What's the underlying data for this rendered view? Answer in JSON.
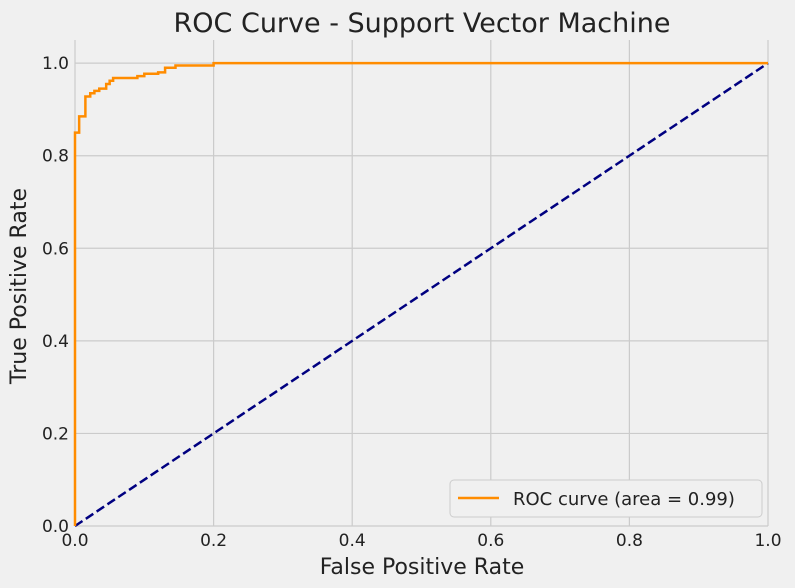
{
  "chart_data": {
    "type": "line",
    "title": "ROC Curve - Support Vector Machine",
    "xlabel": "False Positive Rate",
    "ylabel": "True Positive Rate",
    "xlim": [
      0.0,
      1.0
    ],
    "ylim": [
      0.0,
      1.05
    ],
    "x_ticks": [
      "0.0",
      "0.2",
      "0.4",
      "0.6",
      "0.8",
      "1.0"
    ],
    "y_ticks": [
      "0.0",
      "0.2",
      "0.4",
      "0.6",
      "0.8",
      "1.0"
    ],
    "grid": true,
    "legend_position": "lower right",
    "series": [
      {
        "name": "ROC curve (area = 0.99)",
        "color": "#ff8c00",
        "style": "solid",
        "x": [
          0.0,
          0.0,
          0.006,
          0.006,
          0.015,
          0.015,
          0.022,
          0.022,
          0.028,
          0.028,
          0.035,
          0.035,
          0.045,
          0.045,
          0.05,
          0.05,
          0.055,
          0.055,
          0.09,
          0.09,
          0.1,
          0.1,
          0.12,
          0.12,
          0.13,
          0.13,
          0.145,
          0.145,
          0.2,
          0.2,
          1.0
        ],
        "y": [
          0.0,
          0.85,
          0.85,
          0.885,
          0.885,
          0.928,
          0.928,
          0.935,
          0.935,
          0.94,
          0.94,
          0.945,
          0.945,
          0.955,
          0.955,
          0.962,
          0.962,
          0.968,
          0.968,
          0.972,
          0.972,
          0.977,
          0.977,
          0.98,
          0.98,
          0.99,
          0.99,
          0.995,
          0.995,
          1.0,
          1.0
        ]
      },
      {
        "name": "",
        "color": "#000080",
        "style": "dashed",
        "x": [
          0.0,
          1.0
        ],
        "y": [
          0.0,
          1.0
        ]
      }
    ]
  }
}
